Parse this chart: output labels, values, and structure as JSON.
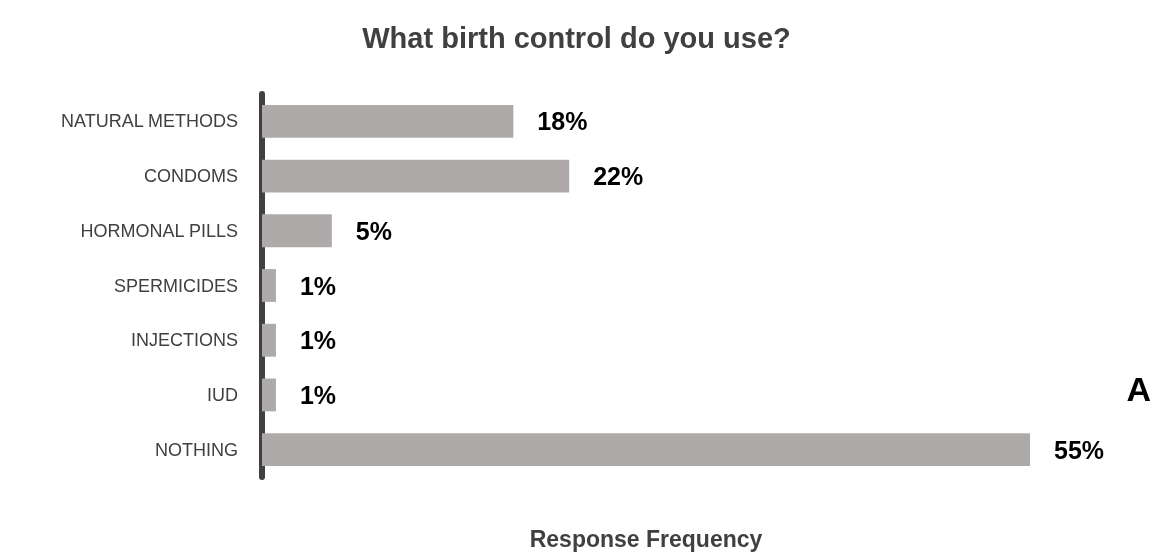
{
  "chart_data": {
    "type": "bar",
    "orientation": "horizontal",
    "title": "What birth control do you use?",
    "xlabel": "Response Frequency",
    "categories": [
      "NATURAL METHODS",
      "CONDOMS",
      "HORMONAL PILLS",
      "SPERMICIDES",
      "INJECTIONS",
      "IUD",
      "NOTHING"
    ],
    "values": [
      18,
      22,
      5,
      1,
      1,
      1,
      55
    ],
    "value_labels": [
      "18%",
      "22%",
      "5%",
      "1%",
      "1%",
      "1%",
      "55%"
    ],
    "color": "#aeaaaa",
    "annotations": [
      "A"
    ]
  }
}
